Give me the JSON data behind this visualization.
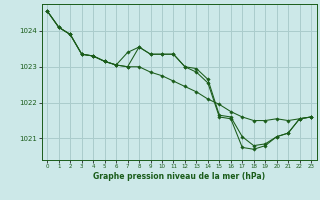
{
  "series": [
    {
      "x": [
        0,
        1,
        2,
        3,
        4,
        5,
        6,
        7,
        8,
        9,
        10,
        11,
        12,
        13,
        14,
        15,
        16,
        17,
        18,
        19,
        20,
        21,
        22,
        23
      ],
      "y": [
        1024.55,
        1024.1,
        1023.9,
        1023.35,
        1023.3,
        1023.15,
        1023.05,
        1023.0,
        1023.0,
        1022.85,
        1022.75,
        1022.6,
        1022.45,
        1022.3,
        1022.1,
        1021.95,
        1021.75,
        1021.6,
        1021.5,
        1021.5,
        1021.55,
        1021.5,
        1021.55,
        1021.6
      ]
    },
    {
      "x": [
        0,
        1,
        2,
        3,
        4,
        5,
        6,
        7,
        8,
        9,
        10,
        11,
        12,
        13,
        14,
        15,
        16,
        17,
        18,
        19,
        20,
        21,
        22,
        23
      ],
      "y": [
        1024.55,
        1024.1,
        1023.9,
        1023.35,
        1023.3,
        1023.15,
        1023.05,
        1023.4,
        1023.55,
        1023.35,
        1023.35,
        1023.35,
        1023.0,
        1022.95,
        1022.65,
        1021.65,
        1021.6,
        1021.05,
        1020.8,
        1020.85,
        1021.05,
        1021.15,
        1021.55,
        1021.6
      ]
    },
    {
      "x": [
        0,
        1,
        2,
        3,
        4,
        5,
        6,
        7,
        8,
        9,
        10,
        11,
        12,
        13,
        14,
        15,
        16,
        17,
        18,
        19,
        20,
        21,
        22,
        23
      ],
      "y": [
        1024.55,
        1024.1,
        1023.9,
        1023.35,
        1023.3,
        1023.15,
        1023.05,
        1023.0,
        1023.55,
        1023.35,
        1023.35,
        1023.35,
        1023.0,
        1022.85,
        1022.55,
        1021.6,
        1021.55,
        1020.75,
        1020.7,
        1020.8,
        1021.05,
        1021.15,
        1021.55,
        1021.6
      ]
    }
  ],
  "line_color": "#1a5c1a",
  "marker": "D",
  "marker_size": 1.8,
  "bg_color": "#cce8e8",
  "grid_color": "#aacccc",
  "tick_label_color": "#1a5c1a",
  "xlabel": "Graphe pression niveau de la mer (hPa)",
  "xlabel_color": "#1a5c1a",
  "ylim": [
    1020.4,
    1024.75
  ],
  "yticks": [
    1021,
    1022,
    1023,
    1024
  ],
  "xticks": [
    0,
    1,
    2,
    3,
    4,
    5,
    6,
    7,
    8,
    9,
    10,
    11,
    12,
    13,
    14,
    15,
    16,
    17,
    18,
    19,
    20,
    21,
    22,
    23
  ],
  "figsize": [
    3.2,
    2.0
  ],
  "dpi": 100
}
